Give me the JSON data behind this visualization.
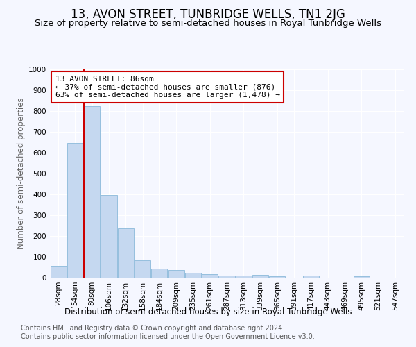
{
  "title": "13, AVON STREET, TUNBRIDGE WELLS, TN1 2JG",
  "subtitle": "Size of property relative to semi-detached houses in Royal Tunbridge Wells",
  "xlabel_bottom": "Distribution of semi-detached houses by size in Royal Tunbridge Wells",
  "ylabel": "Number of semi-detached properties",
  "categories": [
    "28sqm",
    "54sqm",
    "80sqm",
    "106sqm",
    "132sqm",
    "158sqm",
    "184sqm",
    "209sqm",
    "235sqm",
    "261sqm",
    "287sqm",
    "313sqm",
    "339sqm",
    "365sqm",
    "391sqm",
    "417sqm",
    "443sqm",
    "469sqm",
    "495sqm",
    "521sqm",
    "547sqm"
  ],
  "values": [
    55,
    648,
    825,
    397,
    238,
    85,
    42,
    38,
    22,
    17,
    10,
    10,
    12,
    8,
    0,
    9,
    0,
    0,
    7,
    0,
    0
  ],
  "bar_color": "#c5d8f0",
  "bar_edge_color": "#7aafd4",
  "vline_color": "#cc0000",
  "vline_x_index": 2,
  "annotation_text": "13 AVON STREET: 86sqm\n← 37% of semi-detached houses are smaller (876)\n63% of semi-detached houses are larger (1,478) →",
  "annotation_box_color": "#ffffff",
  "annotation_box_edge": "#cc0000",
  "ylim": [
    0,
    1000
  ],
  "yticks": [
    0,
    100,
    200,
    300,
    400,
    500,
    600,
    700,
    800,
    900,
    1000
  ],
  "footer_line1": "Contains HM Land Registry data © Crown copyright and database right 2024.",
  "footer_line2": "Contains public sector information licensed under the Open Government Licence v3.0.",
  "bg_color": "#f5f7ff",
  "grid_color": "#ffffff",
  "title_fontsize": 12,
  "subtitle_fontsize": 9.5,
  "tick_fontsize": 7.5,
  "ylabel_fontsize": 8.5,
  "footer_fontsize": 7,
  "xlabel_bottom_fontsize": 8.5
}
